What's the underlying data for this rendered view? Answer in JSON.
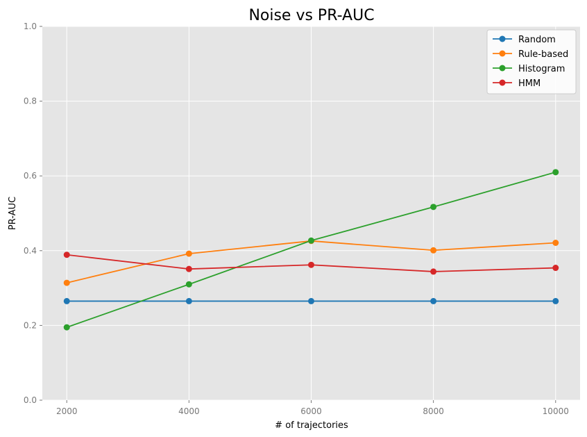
{
  "chart_data": {
    "type": "line",
    "title": "Noise vs PR-AUC",
    "xlabel": "# of trajectories",
    "ylabel": "PR-AUC",
    "x": [
      2000,
      4000,
      6000,
      8000,
      10000
    ],
    "xticks": [
      2000,
      4000,
      6000,
      8000,
      10000
    ],
    "yticks": [
      0.0,
      0.2,
      0.4,
      0.6,
      0.8,
      1.0
    ],
    "xlim": [
      1600,
      10400
    ],
    "ylim": [
      0.0,
      1.0
    ],
    "grid": true,
    "legend_position": "top-right",
    "series": [
      {
        "name": "Random",
        "color": "#1f77b4",
        "values": [
          0.265,
          0.265,
          0.265,
          0.265,
          0.265
        ]
      },
      {
        "name": "Rule-based",
        "color": "#ff7f0e",
        "values": [
          0.314,
          0.392,
          0.426,
          0.401,
          0.421
        ]
      },
      {
        "name": "Histogram",
        "color": "#2ca02c",
        "values": [
          0.195,
          0.31,
          0.427,
          0.517,
          0.61
        ]
      },
      {
        "name": "HMM",
        "color": "#d62728",
        "values": [
          0.389,
          0.351,
          0.362,
          0.344,
          0.354
        ]
      }
    ]
  }
}
